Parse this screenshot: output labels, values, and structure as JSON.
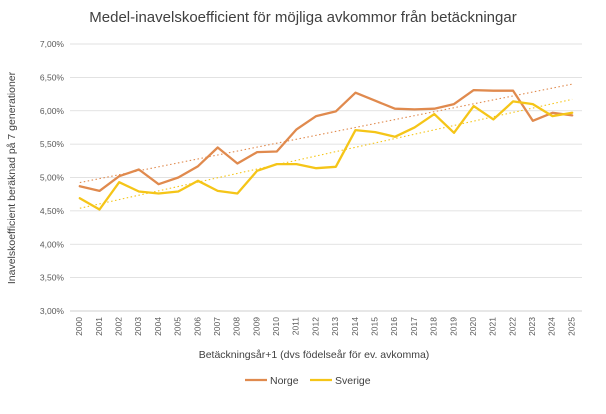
{
  "chart_data": {
    "type": "line",
    "title": "Medel-inavelskoefficient för möjliga avkommor från betäckningar",
    "xlabel": "Betäckningsår+1 (dvs födelseår för ev. avkomma)",
    "ylabel": "Inavelskoefficient beräknad på 7 generationer",
    "ylim": [
      3.0,
      7.0
    ],
    "y_ticks": [
      "3,00%",
      "3,50%",
      "4,00%",
      "4,50%",
      "5,00%",
      "5,50%",
      "6,00%",
      "6,50%",
      "7,00%"
    ],
    "y_tick_values": [
      3.0,
      3.5,
      4.0,
      4.5,
      5.0,
      5.5,
      6.0,
      6.5,
      7.0
    ],
    "categories": [
      "2000",
      "2001",
      "2002",
      "2003",
      "2004",
      "2005",
      "2006",
      "2007",
      "2008",
      "2009",
      "2010",
      "2011",
      "2012",
      "2013",
      "2014",
      "2015",
      "2016",
      "2017",
      "2018",
      "2019",
      "2020",
      "2021",
      "2022",
      "2023",
      "2024",
      "2025"
    ],
    "grid": true,
    "legend_position": "bottom",
    "trendlines": true,
    "series": [
      {
        "name": "Norge",
        "color": "#e08a4e",
        "values": [
          4.87,
          4.8,
          5.02,
          5.12,
          4.9,
          5.0,
          5.17,
          5.45,
          5.21,
          5.38,
          5.39,
          5.72,
          5.92,
          5.99,
          6.27,
          6.15,
          6.03,
          6.02,
          6.03,
          6.1,
          6.31,
          6.3,
          6.3,
          5.85,
          5.97,
          5.93
        ]
      },
      {
        "name": "Sverige",
        "color": "#f5c518",
        "values": [
          4.69,
          4.52,
          4.93,
          4.79,
          4.76,
          4.79,
          4.95,
          4.8,
          4.76,
          5.1,
          5.2,
          5.2,
          5.14,
          5.16,
          5.71,
          5.68,
          5.61,
          5.75,
          5.95,
          5.67,
          6.07,
          5.87,
          6.14,
          6.1,
          5.92,
          5.97
        ]
      }
    ]
  }
}
